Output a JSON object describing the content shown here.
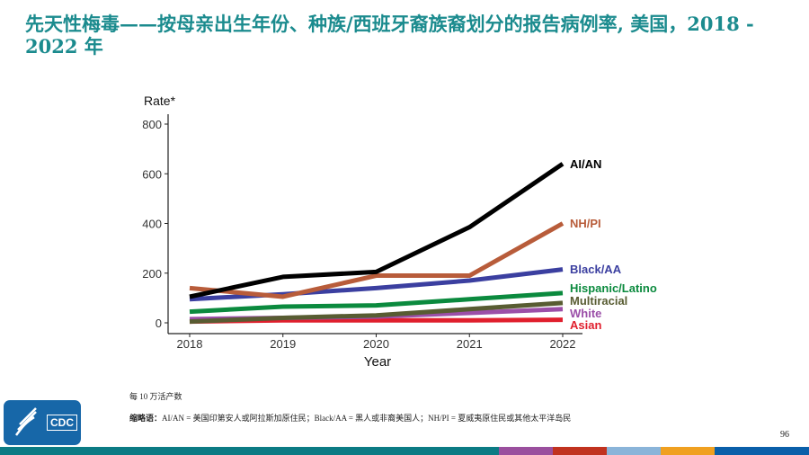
{
  "title": "先天性梅毒——按母亲出生年份、种族/西班牙裔族裔划分的报告病例率, 美国，2018 - 2022 年",
  "footnote": "每 10 万活产数",
  "abbreviations_label": "缩略语：",
  "abbreviations_text": "AI/AN = 美国印第安人或阿拉斯加原住民；Black/AA = 黑人或非裔美国人；NH/PI = 夏威夷原住民或其他太平洋岛民",
  "page_number": "96",
  "logo_text": "CDC",
  "colors": {
    "title": "#1b8b8e",
    "strip": [
      "#0b7b84",
      "#9a4f9e",
      "#c1321f",
      "#8ab4d9",
      "#f0a020",
      "#0a5fa9"
    ]
  },
  "chart_data": {
    "type": "line",
    "ylabel": "Rate*",
    "xlabel": "Year",
    "x": [
      2018,
      2019,
      2020,
      2021,
      2022
    ],
    "x_ticks": [
      "2018",
      "2019",
      "2020",
      "2021",
      "2022"
    ],
    "y_ticks": [
      "0",
      "200",
      "400",
      "600",
      "800"
    ],
    "ylim": [
      0,
      800
    ],
    "grid": false,
    "legend": "direct labels at line ends (right)",
    "series": [
      {
        "name": "AI/AN",
        "color": "#000000",
        "values": [
          105,
          185,
          205,
          385,
          640
        ]
      },
      {
        "name": "NH/PI",
        "color": "#b85c3a",
        "values": [
          140,
          105,
          190,
          190,
          400
        ]
      },
      {
        "name": "Black/AA",
        "color": "#3b3fa0",
        "values": [
          95,
          115,
          140,
          170,
          215
        ]
      },
      {
        "name": "Hispanic/Latino",
        "color": "#0b8a3e",
        "values": [
          45,
          65,
          70,
          95,
          120
        ]
      },
      {
        "name": "Multiracial",
        "color": "#585c32",
        "values": [
          5,
          20,
          30,
          55,
          80
        ]
      },
      {
        "name": "White",
        "color": "#9b4fa8",
        "values": [
          15,
          20,
          25,
          40,
          55
        ]
      },
      {
        "name": "Asian",
        "color": "#e01f2d",
        "values": [
          5,
          10,
          10,
          10,
          12
        ]
      }
    ]
  }
}
